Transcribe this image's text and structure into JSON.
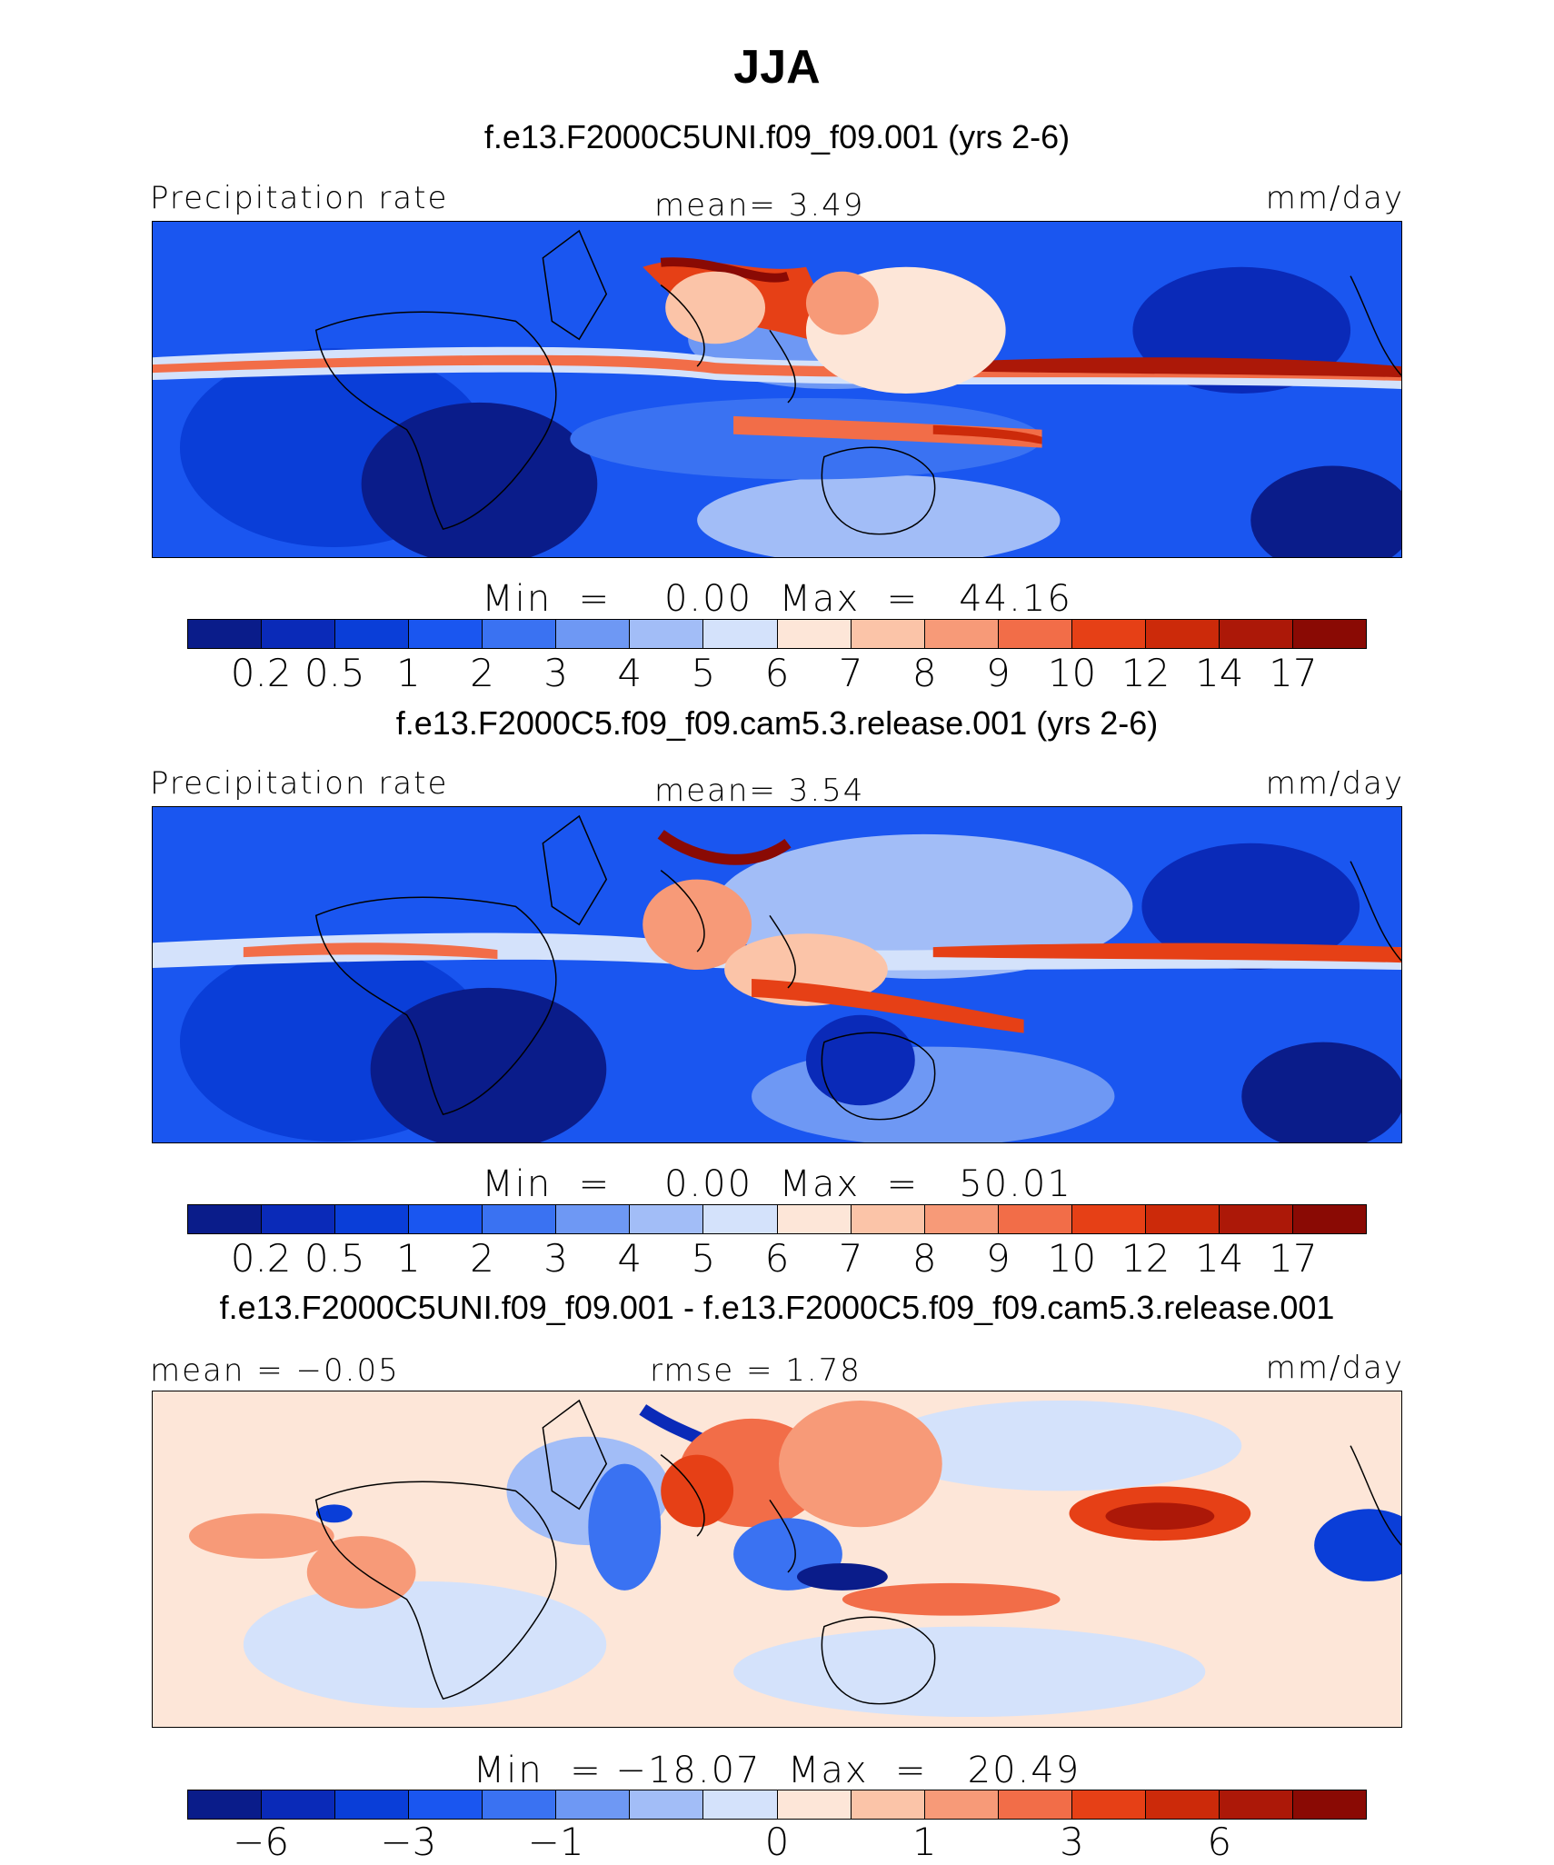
{
  "title": "JJA",
  "panels": [
    {
      "case": "f.e13.F2000C5UNI.f09_f09.001 (yrs 2-6)",
      "left_label": "Precipitation rate",
      "center_label": "mean=    3.49",
      "right_label": "mm/day",
      "minmax": "Min  =    0.00  Max  =   44.16",
      "tick_labels": [
        "0.2",
        "0.5",
        "1",
        "2",
        "3",
        "4",
        "5",
        "6",
        "7",
        "8",
        "9",
        "10",
        "12",
        "14",
        "17"
      ],
      "colors": [
        "#0a1c8a",
        "#0a2ab8",
        "#0a3ed8",
        "#1a56f0",
        "#3a72f2",
        "#6e98f4",
        "#a2bdf7",
        "#d4e2fb",
        "#fde6d8",
        "#fbc4a8",
        "#f79a78",
        "#f26d48",
        "#e64016",
        "#cc2a0a",
        "#ac1808",
        "#8a0a04"
      ]
    },
    {
      "case": "f.e13.F2000C5.f09_f09.cam5.3.release.001 (yrs 2-6)",
      "left_label": "Precipitation rate",
      "center_label": "mean=    3.54",
      "right_label": "mm/day",
      "minmax": "Min  =    0.00  Max  =   50.01",
      "tick_labels": [
        "0.2",
        "0.5",
        "1",
        "2",
        "3",
        "4",
        "5",
        "6",
        "7",
        "8",
        "9",
        "10",
        "12",
        "14",
        "17"
      ],
      "colors": [
        "#0a1c8a",
        "#0a2ab8",
        "#0a3ed8",
        "#1a56f0",
        "#3a72f2",
        "#6e98f4",
        "#a2bdf7",
        "#d4e2fb",
        "#fde6d8",
        "#fbc4a8",
        "#f79a78",
        "#f26d48",
        "#e64016",
        "#cc2a0a",
        "#ac1808",
        "#8a0a04"
      ]
    },
    {
      "case": "f.e13.F2000C5UNI.f09_f09.001 - f.e13.F2000C5.f09_f09.cam5.3.release.001",
      "left_label": "mean =   −0.05",
      "center_label": "rmse =    1.78",
      "right_label": "mm/day",
      "minmax": "Min  = −18.07  Max  =   20.49",
      "tick_labels": [
        "−6",
        "−3",
        "−1",
        "0",
        "1",
        "3",
        "6"
      ],
      "colors": [
        "#0a1c8a",
        "#0a2ab8",
        "#0a3ed8",
        "#1a56f0",
        "#3a72f2",
        "#6e98f4",
        "#a2bdf7",
        "#d4e2fb",
        "#fde6d8",
        "#fbc4a8",
        "#f79a78",
        "#f26d48",
        "#e64016",
        "#cc2a0a",
        "#ac1808",
        "#8a0a04"
      ]
    }
  ]
}
